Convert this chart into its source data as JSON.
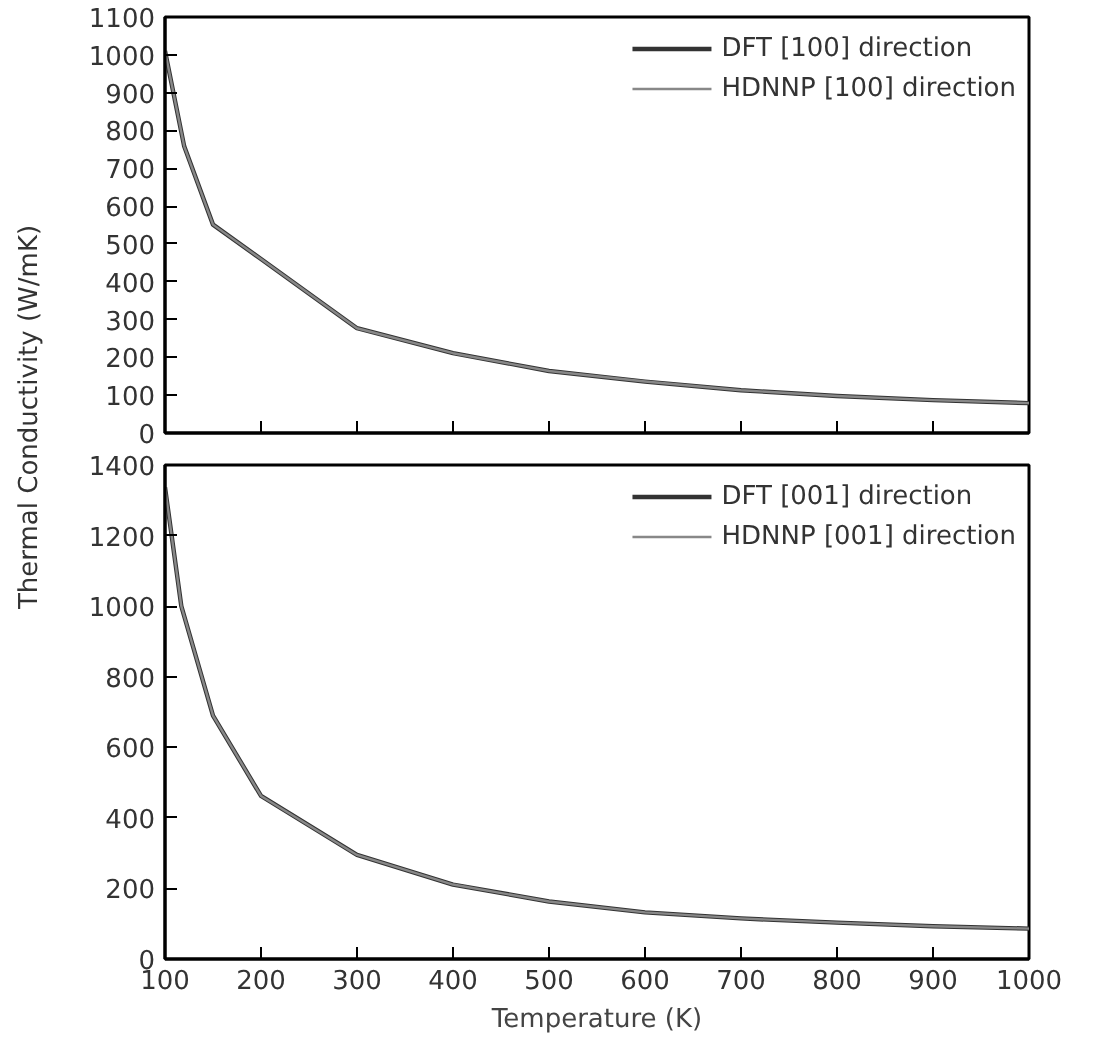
{
  "chart_data": [
    {
      "type": "line",
      "ylabel": "Thermal Conductivity (W/mK)",
      "x": [
        100,
        120,
        150,
        200,
        300,
        400,
        500,
        600,
        700,
        800,
        900,
        1000
      ],
      "series": [
        {
          "name": "DFT [100] direction",
          "color": "#333333",
          "values": [
            1010,
            758,
            551,
            460,
            277,
            211,
            164,
            136,
            113,
            98,
            87,
            79
          ]
        },
        {
          "name": "HDNNP [100] direction",
          "color": "#888888",
          "values": [
            1010,
            758,
            551,
            460,
            277,
            211,
            164,
            136,
            113,
            98,
            87,
            79
          ]
        }
      ],
      "xlim": [
        100,
        1000
      ],
      "ylim": [
        0,
        1100
      ],
      "xticks": [
        100,
        200,
        300,
        400,
        500,
        600,
        700,
        800,
        900,
        1000
      ],
      "yticks": [
        0,
        100,
        200,
        300,
        400,
        500,
        600,
        700,
        800,
        900,
        1000,
        1100
      ],
      "tick_labels": "y",
      "legend": "top right",
      "grid": false
    },
    {
      "type": "line",
      "xlabel": "Temperature (K)",
      "x": [
        100,
        117,
        150,
        200,
        300,
        400,
        500,
        600,
        700,
        800,
        900,
        1000
      ],
      "series": [
        {
          "name": "DFT [001] direction",
          "color": "#333333",
          "values": [
            1337,
            1000,
            690,
            462,
            295,
            211,
            163,
            132,
            115,
            103,
            93,
            86
          ]
        },
        {
          "name": "HDNNP [001] direction",
          "color": "#888888",
          "values": [
            1337,
            1000,
            690,
            462,
            295,
            211,
            163,
            132,
            115,
            103,
            93,
            86
          ]
        }
      ],
      "xlim": [
        100,
        1000
      ],
      "ylim": [
        0,
        1400
      ],
      "xticks": [
        100,
        200,
        300,
        400,
        500,
        600,
        700,
        800,
        900,
        1000
      ],
      "yticks": [
        0,
        200,
        400,
        600,
        800,
        1000,
        1200,
        1400
      ],
      "legend": "top right",
      "grid": false
    }
  ]
}
